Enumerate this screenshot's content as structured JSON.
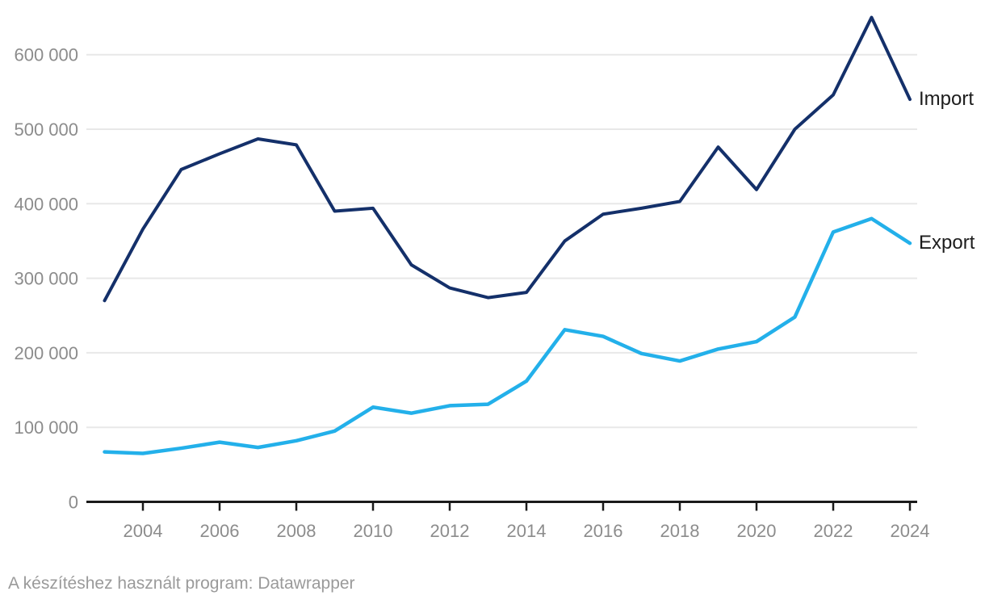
{
  "chart_data": {
    "type": "line",
    "title": "",
    "xlabel": "",
    "ylabel": "",
    "x": [
      2003,
      2004,
      2005,
      2006,
      2007,
      2008,
      2009,
      2010,
      2011,
      2012,
      2013,
      2014,
      2015,
      2016,
      2017,
      2018,
      2019,
      2020,
      2021,
      2022,
      2023,
      2024
    ],
    "series": [
      {
        "name": "Import",
        "color": "#14306a",
        "stroke_width": 4,
        "values": [
          270000,
          366000,
          446000,
          467000,
          487000,
          479000,
          390000,
          394000,
          318000,
          287000,
          274000,
          281000,
          350000,
          386000,
          394000,
          403000,
          476000,
          419000,
          500000,
          546000,
          650000,
          540000
        ]
      },
      {
        "name": "Export",
        "color": "#23b0ea",
        "stroke_width": 4.5,
        "values": [
          67000,
          65000,
          72000,
          80000,
          73000,
          82000,
          95000,
          127000,
          119000,
          129000,
          131000,
          162000,
          231000,
          222000,
          199000,
          189000,
          205000,
          215000,
          248000,
          362000,
          380000,
          347000
        ]
      }
    ],
    "ylim": [
      0,
      660000
    ],
    "y_ticks": [
      0,
      100000,
      200000,
      300000,
      400000,
      500000,
      600000
    ],
    "y_tick_labels": [
      "0",
      "100 000",
      "200 000",
      "300 000",
      "400 000",
      "500 000",
      "600 000"
    ],
    "x_tick_years": [
      2004,
      2006,
      2008,
      2010,
      2012,
      2014,
      2016,
      2018,
      2020,
      2022,
      2024
    ],
    "x_tick_labels": [
      "2004",
      "2006",
      "2008",
      "2010",
      "2012",
      "2014",
      "2016",
      "2018",
      "2020",
      "2022",
      "2024"
    ],
    "grid": "horizontal",
    "legend_position": "right-of-line-ends",
    "colors": {
      "grid_line": "#e8e8e8",
      "axis_line": "#1a1a1a",
      "tick_label": "#8c8c8c",
      "series_label": "#1d1d1d"
    }
  },
  "footer": {
    "text": "A készítéshez használt program: Datawrapper"
  }
}
